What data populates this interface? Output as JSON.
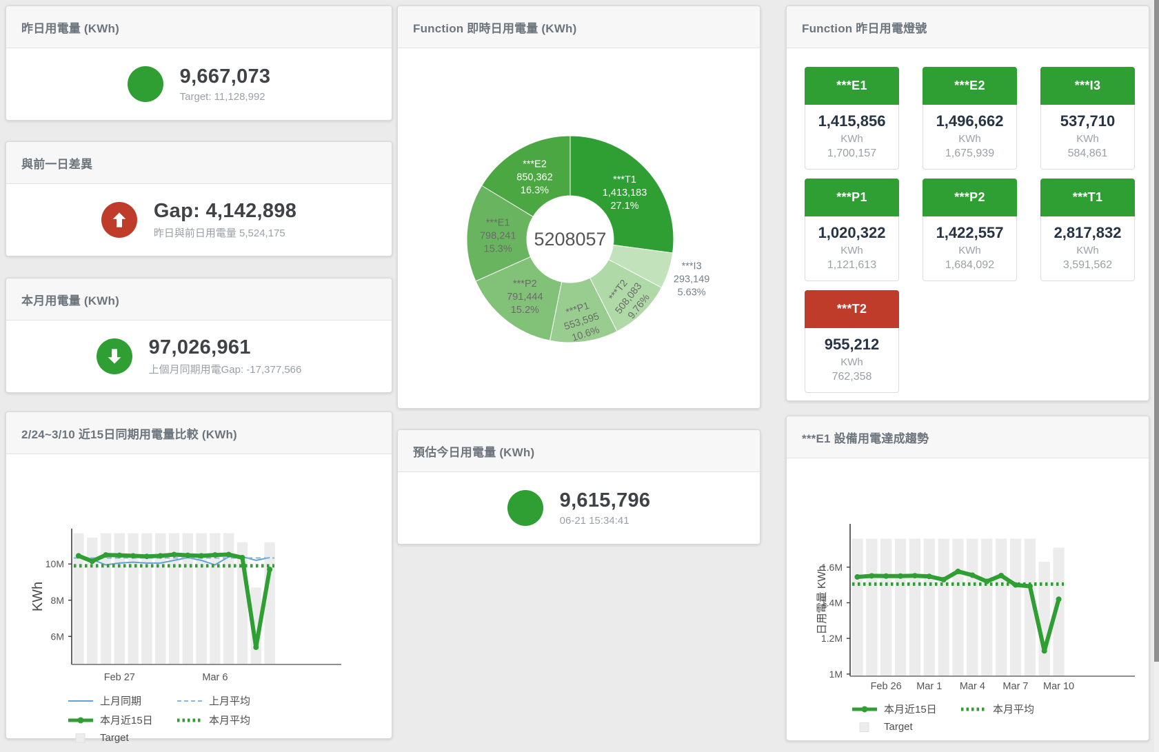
{
  "colors": {
    "green": "#2f9e33",
    "red": "#bf3b2a",
    "blue": "#64a0d2",
    "blue_light": "#85b6de",
    "bar_gray": "#ececec",
    "axis": "#4a4a4a",
    "tick_text": "#555555"
  },
  "stat_cards": [
    {
      "id": "yesterday",
      "title": "昨日用電量 (KWh)",
      "value": "9,667,073",
      "subtitle": "Target: 11,128,992",
      "indicator": "none",
      "indicator_color": "#2f9e33"
    },
    {
      "id": "gap-prev-day",
      "title": "與前一日差異",
      "value": "Gap: 4,142,898",
      "subtitle": "昨日與前日用電量 5,524,175",
      "indicator": "up",
      "indicator_color": "#bf3b2a"
    },
    {
      "id": "month-usage",
      "title": "本月用電量 (KWh)",
      "value": "97,026,961",
      "subtitle": "上個月同期用電Gap: -17,377,566",
      "indicator": "down",
      "indicator_color": "#2f9e33"
    },
    {
      "id": "forecast-today",
      "title": "預估今日用電量 (KWh)",
      "value": "9,615,796",
      "subtitle": "06-21 15:34:41",
      "indicator": "none",
      "indicator_color": "#2f9e33"
    }
  ],
  "donut": {
    "title": "Function 即時日用電量 (KWh)",
    "center_label": "5208057",
    "slices": [
      {
        "name": "***T1",
        "value": 1413183,
        "value_label": "1,413,183",
        "pct_label": "27.1%",
        "color": "#2f9e33",
        "text": "#ffffff",
        "label_r": 105,
        "rot": 0,
        "outside": false
      },
      {
        "name": "***I3",
        "value": 293149,
        "value_label": "293,149",
        "pct_label": "5.63%",
        "color": "#c2e2bb",
        "text": "#72808c",
        "label_r": 185,
        "rot": 0,
        "outside": true
      },
      {
        "name": "***T2",
        "value": 508083,
        "value_label": "508,083",
        "pct_label": "9.76%",
        "color": "#afd9a6",
        "text": "#6b6b6b",
        "label_r": 119,
        "rot": -52,
        "outside": false
      },
      {
        "name": "***P1",
        "value": 553595,
        "value_label": "553,595",
        "pct_label": "10.6%",
        "color": "#99cd90",
        "text": "#6b6b6b",
        "label_r": 119,
        "rot": -18,
        "outside": false
      },
      {
        "name": "***P2",
        "value": 791444,
        "value_label": "791,444",
        "pct_label": "15.2%",
        "color": "#82c178",
        "text": "#6b6b6b",
        "label_r": 105,
        "rot": 0,
        "outside": false
      },
      {
        "name": "***E1",
        "value": 798241,
        "value_label": "798,241",
        "pct_label": "15.3%",
        "color": "#69b55f",
        "text": "#6b6b6b",
        "label_r": 105,
        "rot": 0,
        "outside": false
      },
      {
        "name": "***E2",
        "value": 850362,
        "value_label": "850,362",
        "pct_label": "16.3%",
        "color": "#4aa741",
        "text": "#ffffff",
        "label_r": 105,
        "rot": 0,
        "outside": false
      }
    ]
  },
  "lights": {
    "title": "Function 昨日用電燈號",
    "tiles": [
      {
        "name": "***E1",
        "value": "1,415,856",
        "unit": "KWh",
        "target": "1,700,157",
        "status": "green"
      },
      {
        "name": "***E2",
        "value": "1,496,662",
        "unit": "KWh",
        "target": "1,675,939",
        "status": "green"
      },
      {
        "name": "***I3",
        "value": "537,710",
        "unit": "KWh",
        "target": "584,861",
        "status": "green"
      },
      {
        "name": "***P1",
        "value": "1,020,322",
        "unit": "KWh",
        "target": "1,121,613",
        "status": "green"
      },
      {
        "name": "***P2",
        "value": "1,422,557",
        "unit": "KWh",
        "target": "1,684,092",
        "status": "green"
      },
      {
        "name": "***T1",
        "value": "2,817,832",
        "unit": "KWh",
        "target": "3,591,562",
        "status": "green"
      },
      {
        "name": "***T2",
        "value": "955,212",
        "unit": "KWh",
        "target": "762,358",
        "status": "red"
      }
    ]
  },
  "chart_data": [
    {
      "id": "chart_compare",
      "type": "line",
      "title": "2/24~3/10 近15日同期用電量比較 (KWh)",
      "ylabel": "KWh",
      "ylim": [
        4.45,
        11.95
      ],
      "yticks": [
        {
          "v": 6,
          "label": "6M"
        },
        {
          "v": 8,
          "label": "8M"
        },
        {
          "v": 10,
          "label": "10M"
        }
      ],
      "xticks": [
        {
          "i": 3,
          "label": "Feb 27"
        },
        {
          "i": 10,
          "label": "Mar 6"
        }
      ],
      "unit": "M KWh",
      "target_bars": [
        11.7,
        11.45,
        11.7,
        11.7,
        11.7,
        11.7,
        11.7,
        11.7,
        11.7,
        11.7,
        11.7,
        11.7,
        11.2,
        8.7,
        11.2
      ],
      "series": [
        {
          "name": "上月同期",
          "style": "thin",
          "color": "#64a0d2",
          "values": [
            10.5,
            10.25,
            9.95,
            10.05,
            10.1,
            10.05,
            10.05,
            10.2,
            10.35,
            10.2,
            9.95,
            10.4,
            10.4,
            10.2,
            10.35
          ]
        },
        {
          "name": "上月平均",
          "style": "dash",
          "color": "#85b6de",
          "values": 10.33
        },
        {
          "name": "本月平均",
          "style": "dots",
          "color": "#2f9e33",
          "values": 9.9
        },
        {
          "name": "本月近15日",
          "style": "thick",
          "color": "#2f9e33",
          "values": [
            10.45,
            10.15,
            10.5,
            10.48,
            10.45,
            10.42,
            10.45,
            10.52,
            10.48,
            10.45,
            10.5,
            10.52,
            10.35,
            5.4,
            9.7
          ]
        }
      ],
      "legend": [
        [
          "上月同期",
          "上月平均"
        ],
        [
          "本月近15日",
          "本月平均"
        ],
        [
          "Target"
        ]
      ]
    },
    {
      "id": "chart_e1",
      "type": "line",
      "title": "***E1 設備用電達成趨勢",
      "ylabel": "日用電量 KWh",
      "ylim": [
        0.988,
        1.843
      ],
      "yticks": [
        {
          "v": 1.0,
          "label": "1M"
        },
        {
          "v": 1.2,
          "label": "1.2M"
        },
        {
          "v": 1.4,
          "label": "1.4M"
        },
        {
          "v": 1.6,
          "label": "1.6M"
        }
      ],
      "xticks": [
        {
          "i": 2,
          "label": "Feb 26"
        },
        {
          "i": 5,
          "label": "Mar 1"
        },
        {
          "i": 8,
          "label": "Mar 4"
        },
        {
          "i": 11,
          "label": "Mar 7"
        },
        {
          "i": 14,
          "label": "Mar 10"
        }
      ],
      "unit": "M KWh",
      "target_bars": [
        1.76,
        1.76,
        1.76,
        1.76,
        1.76,
        1.76,
        1.76,
        1.76,
        1.76,
        1.76,
        1.76,
        1.76,
        1.76,
        1.63,
        1.71
      ],
      "series": [
        {
          "name": "本月平均",
          "style": "dots",
          "color": "#2f9e33",
          "values": 1.505
        },
        {
          "name": "本月近15日",
          "style": "thick",
          "color": "#2f9e33",
          "values": [
            1.545,
            1.551,
            1.55,
            1.55,
            1.552,
            1.548,
            1.53,
            1.576,
            1.555,
            1.52,
            1.553,
            1.5,
            1.493,
            1.13,
            1.42
          ]
        }
      ],
      "legend": [
        [
          "本月近15日",
          "本月平均"
        ],
        [
          "Target"
        ]
      ]
    }
  ]
}
